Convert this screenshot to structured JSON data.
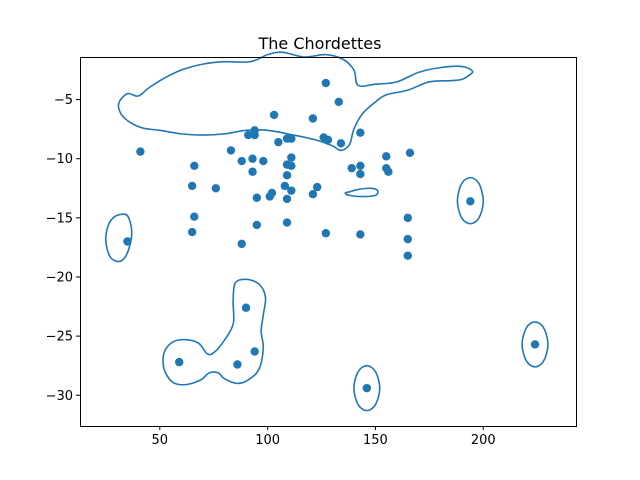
{
  "chart_data": {
    "type": "scatter",
    "title": "The Chordettes",
    "xlabel": "",
    "ylabel": "",
    "xlim": [
      13,
      243
    ],
    "ylim": [
      -32.6,
      -1.4
    ],
    "xticks": [
      50,
      100,
      150,
      200
    ],
    "yticks": [
      -30,
      -25,
      -20,
      -15,
      -10,
      -5
    ],
    "xtick_labels": [
      "50",
      "100",
      "150",
      "200"
    ],
    "ytick_labels": [
      "−30",
      "−25",
      "−20",
      "−15",
      "−10",
      "−5"
    ],
    "grid": false,
    "color": "#1f77b4",
    "points": [
      {
        "x": 127,
        "y": -3.6
      },
      {
        "x": 133,
        "y": -5.2
      },
      {
        "x": 103,
        "y": -6.3
      },
      {
        "x": 121,
        "y": -6.6
      },
      {
        "x": 94,
        "y": -7.6
      },
      {
        "x": 143,
        "y": -7.8
      },
      {
        "x": 91,
        "y": -8.0
      },
      {
        "x": 94,
        "y": -8.0
      },
      {
        "x": 109,
        "y": -8.3
      },
      {
        "x": 111,
        "y": -8.3
      },
      {
        "x": 126,
        "y": -8.2
      },
      {
        "x": 128,
        "y": -8.4
      },
      {
        "x": 105,
        "y": -8.6
      },
      {
        "x": 134,
        "y": -8.7
      },
      {
        "x": 83,
        "y": -9.3
      },
      {
        "x": 41,
        "y": -9.4
      },
      {
        "x": 166,
        "y": -9.5
      },
      {
        "x": 155,
        "y": -9.8
      },
      {
        "x": 111,
        "y": -9.9
      },
      {
        "x": 93,
        "y": -10.0
      },
      {
        "x": 88,
        "y": -10.2
      },
      {
        "x": 98,
        "y": -10.2
      },
      {
        "x": 109,
        "y": -10.5
      },
      {
        "x": 111,
        "y": -10.6
      },
      {
        "x": 66,
        "y": -10.6
      },
      {
        "x": 143,
        "y": -10.6
      },
      {
        "x": 139,
        "y": -10.8
      },
      {
        "x": 155,
        "y": -10.8
      },
      {
        "x": 156,
        "y": -11.1
      },
      {
        "x": 93,
        "y": -11.1
      },
      {
        "x": 143,
        "y": -11.3
      },
      {
        "x": 109,
        "y": -11.4
      },
      {
        "x": 108,
        "y": -12.3
      },
      {
        "x": 65,
        "y": -12.3
      },
      {
        "x": 123,
        "y": -12.4
      },
      {
        "x": 76,
        "y": -12.5
      },
      {
        "x": 111,
        "y": -12.7
      },
      {
        "x": 102,
        "y": -12.9
      },
      {
        "x": 121,
        "y": -13.0
      },
      {
        "x": 101,
        "y": -13.2
      },
      {
        "x": 95,
        "y": -13.3
      },
      {
        "x": 109,
        "y": -13.4
      },
      {
        "x": 194,
        "y": -13.6
      },
      {
        "x": 66,
        "y": -14.9
      },
      {
        "x": 165,
        "y": -15.0
      },
      {
        "x": 109,
        "y": -15.4
      },
      {
        "x": 95,
        "y": -15.6
      },
      {
        "x": 65,
        "y": -16.2
      },
      {
        "x": 127,
        "y": -16.3
      },
      {
        "x": 143,
        "y": -16.4
      },
      {
        "x": 165,
        "y": -16.8
      },
      {
        "x": 35,
        "y": -17.0
      },
      {
        "x": 88,
        "y": -17.2
      },
      {
        "x": 165,
        "y": -18.2
      },
      {
        "x": 90,
        "y": -22.6
      },
      {
        "x": 224,
        "y": -25.7
      },
      {
        "x": 94,
        "y": -26.3
      },
      {
        "x": 59,
        "y": -27.2
      },
      {
        "x": 86,
        "y": -27.4
      },
      {
        "x": 146,
        "y": -29.4
      }
    ],
    "contours": [
      [
        [
          35,
          -4.5
        ],
        [
          40,
          -4.7
        ],
        [
          45,
          -4.0
        ],
        [
          52,
          -3.2
        ],
        [
          60,
          -2.5
        ],
        [
          70,
          -2.0
        ],
        [
          80,
          -1.8
        ],
        [
          92,
          -1.8
        ],
        [
          100,
          -1.2
        ],
        [
          107,
          -1.0
        ],
        [
          117,
          -1.4
        ],
        [
          127,
          -1.2
        ],
        [
          135,
          -1.6
        ],
        [
          140,
          -2.5
        ],
        [
          142,
          -3.8
        ],
        [
          150,
          -3.7
        ],
        [
          160,
          -3.5
        ],
        [
          170,
          -2.7
        ],
        [
          180,
          -2.3
        ],
        [
          190,
          -2.2
        ],
        [
          195,
          -2.6
        ],
        [
          193,
          -3.0
        ],
        [
          190,
          -3.3
        ],
        [
          185,
          -3.4
        ],
        [
          175,
          -3.5
        ],
        [
          165,
          -4.2
        ],
        [
          155,
          -4.6
        ],
        [
          150,
          -5.2
        ],
        [
          144,
          -6.2
        ],
        [
          140,
          -7.5
        ],
        [
          138,
          -8.8
        ],
        [
          134,
          -9.3
        ],
        [
          130,
          -8.9
        ],
        [
          122,
          -8.4
        ],
        [
          112,
          -8.0
        ],
        [
          100,
          -7.6
        ],
        [
          90,
          -7.6
        ],
        [
          80,
          -7.9
        ],
        [
          70,
          -8.0
        ],
        [
          60,
          -7.9
        ],
        [
          50,
          -7.6
        ],
        [
          42,
          -7.4
        ],
        [
          36,
          -6.9
        ],
        [
          32,
          -6.2
        ],
        [
          31,
          -5.3
        ],
        [
          35,
          -4.5
        ]
      ],
      [
        [
          34,
          -14.7
        ],
        [
          36,
          -15.2
        ],
        [
          37,
          -16.3
        ],
        [
          36,
          -17.4
        ],
        [
          34,
          -18.3
        ],
        [
          31,
          -18.7
        ],
        [
          27,
          -18.3
        ],
        [
          25,
          -17.0
        ],
        [
          26,
          -15.7
        ],
        [
          29,
          -14.9
        ],
        [
          34,
          -14.7
        ]
      ],
      [
        [
          194,
          -11.6
        ],
        [
          198,
          -12.1
        ],
        [
          200,
          -13.6
        ],
        [
          198,
          -15.0
        ],
        [
          194,
          -15.5
        ],
        [
          190,
          -15.0
        ],
        [
          188,
          -13.6
        ],
        [
          190,
          -12.1
        ],
        [
          194,
          -11.6
        ]
      ],
      [
        [
          224,
          -23.8
        ],
        [
          228,
          -24.3
        ],
        [
          230,
          -25.7
        ],
        [
          228,
          -27.1
        ],
        [
          224,
          -27.6
        ],
        [
          220,
          -27.1
        ],
        [
          218,
          -25.7
        ],
        [
          220,
          -24.3
        ],
        [
          224,
          -23.8
        ]
      ],
      [
        [
          146,
          -27.5
        ],
        [
          150,
          -28.0
        ],
        [
          152,
          -29.4
        ],
        [
          150,
          -30.8
        ],
        [
          146,
          -31.3
        ],
        [
          142,
          -30.8
        ],
        [
          140,
          -29.4
        ],
        [
          142,
          -28.0
        ],
        [
          146,
          -27.5
        ]
      ],
      [
        [
          85,
          -20.5
        ],
        [
          90,
          -20.2
        ],
        [
          96,
          -20.6
        ],
        [
          99,
          -21.7
        ],
        [
          98,
          -23.2
        ],
        [
          97,
          -24.6
        ],
        [
          98,
          -26.0
        ],
        [
          96,
          -27.8
        ],
        [
          91,
          -28.7
        ],
        [
          86,
          -29.0
        ],
        [
          80,
          -28.6
        ],
        [
          77,
          -28.1
        ],
        [
          73,
          -28.1
        ],
        [
          69,
          -28.7
        ],
        [
          62,
          -29.1
        ],
        [
          56,
          -28.9
        ],
        [
          52,
          -27.8
        ],
        [
          52,
          -26.4
        ],
        [
          56,
          -25.5
        ],
        [
          62,
          -25.3
        ],
        [
          68,
          -25.6
        ],
        [
          72,
          -26.5
        ],
        [
          75,
          -26.4
        ],
        [
          79,
          -25.6
        ],
        [
          84,
          -24.0
        ],
        [
          84,
          -22.0
        ],
        [
          85,
          -20.5
        ]
      ],
      [
        [
          138,
          -12.8
        ],
        [
          142,
          -12.6
        ],
        [
          148,
          -12.5
        ],
        [
          151,
          -12.7
        ],
        [
          150,
          -13.1
        ],
        [
          144,
          -13.2
        ],
        [
          138,
          -13.1
        ],
        [
          136,
          -12.9
        ],
        [
          138,
          -12.8
        ]
      ]
    ]
  }
}
